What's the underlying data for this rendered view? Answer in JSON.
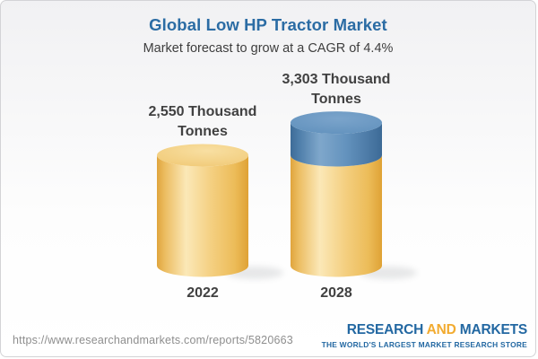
{
  "header": {
    "title": "Global Low HP Tractor Market",
    "subtitle": "Market forecast to grow at a CAGR of 4.4%"
  },
  "chart_data": {
    "type": "bar",
    "variant": "3d-cylinder",
    "categories": [
      "2022",
      "2028"
    ],
    "values": [
      2550,
      3303
    ],
    "unit": "Thousand Tonnes",
    "value_labels": [
      "2,550 Thousand Tonnes",
      "3,303 Thousand Tonnes"
    ],
    "cagr_pct": 4.4,
    "growth_segment": {
      "column": "2028",
      "value": 753,
      "color": "#5b89b4"
    },
    "base_color": "#f2c76f",
    "legend": "none",
    "axes": "none"
  },
  "columns": [
    {
      "year": "2022",
      "label_line1": "2,550 Thousand",
      "label_line2": "Tonnes"
    },
    {
      "year": "2028",
      "label_line1": "3,303 Thousand",
      "label_line2": "Tonnes"
    }
  ],
  "footer": {
    "url": "https://www.researchandmarkets.com/reports/5820663",
    "logo": {
      "part1": "RESEARCH",
      "part2": "AND",
      "part3": "MARKETS",
      "tagline": "THE WORLD'S LARGEST MARKET RESEARCH STORE"
    }
  },
  "colors": {
    "title_blue": "#2b6ca4",
    "text_dark": "#414141",
    "gold_mid": "#f2c76f",
    "gold_dark": "#dfa235",
    "gold_light": "#fbe8b7",
    "blue_mid": "#5b89b4",
    "blue_dark": "#3e6c98",
    "blue_light": "#7fa7cb",
    "logo_blue": "#2368a2",
    "logo_gold": "#f2ab30",
    "url_gray": "#8e8e8e"
  }
}
